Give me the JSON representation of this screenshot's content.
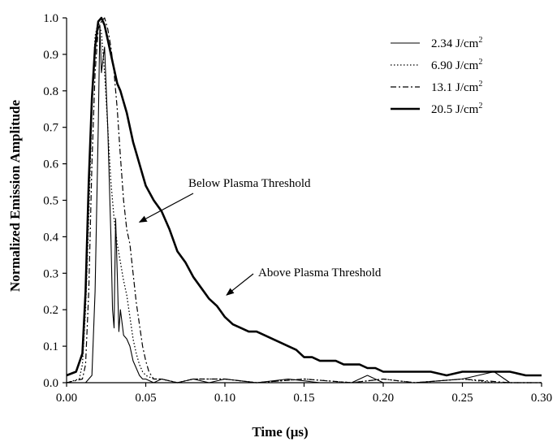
{
  "chart_data": {
    "type": "line",
    "xlabel": "Time (μs)",
    "ylabel": "Normalized Emission Amplitude",
    "xlim": [
      0.0,
      0.3
    ],
    "ylim": [
      0.0,
      1.0
    ],
    "x_ticks": [
      0.0,
      0.05,
      0.1,
      0.15,
      0.2,
      0.25,
      0.3
    ],
    "y_ticks": [
      0.0,
      0.1,
      0.2,
      0.3,
      0.4,
      0.5,
      0.6,
      0.7,
      0.8,
      0.9,
      1.0
    ],
    "x_tick_labels": [
      "0.00",
      "0.05",
      "0.10",
      "0.15",
      "0.20",
      "0.25",
      "0.30"
    ],
    "y_tick_labels": [
      "0.0",
      "0.1",
      "0.2",
      "0.3",
      "0.4",
      "0.5",
      "0.6",
      "0.7",
      "0.8",
      "0.9",
      "1.0"
    ],
    "grid": false,
    "legend_position": "top-right",
    "series": [
      {
        "name": "2.34 J/cm²",
        "line_style": "solid-thin",
        "x": [
          0.0,
          0.012,
          0.016,
          0.018,
          0.02,
          0.021,
          0.022,
          0.024,
          0.026,
          0.028,
          0.029,
          0.03,
          0.031,
          0.032,
          0.033,
          0.034,
          0.036,
          0.038,
          0.04,
          0.042,
          0.044,
          0.046,
          0.048,
          0.05,
          0.055,
          0.06,
          0.07,
          0.08,
          0.09,
          0.1,
          0.12,
          0.14,
          0.16,
          0.18,
          0.19,
          0.2,
          0.22,
          0.25,
          0.27,
          0.28,
          0.3
        ],
        "y": [
          0.0,
          0.0,
          0.02,
          0.25,
          0.7,
          0.98,
          0.85,
          0.92,
          0.7,
          0.4,
          0.2,
          0.15,
          0.45,
          0.3,
          0.14,
          0.2,
          0.13,
          0.12,
          0.1,
          0.06,
          0.04,
          0.02,
          0.01,
          0.01,
          0.0,
          0.01,
          0.0,
          0.01,
          0.0,
          0.01,
          0.0,
          0.01,
          0.0,
          0.0,
          0.02,
          0.0,
          0.0,
          0.01,
          0.03,
          0.0,
          0.0
        ]
      },
      {
        "name": "6.90 J/cm²",
        "line_style": "dotted",
        "x": [
          0.0,
          0.008,
          0.01,
          0.012,
          0.014,
          0.016,
          0.018,
          0.02,
          0.022,
          0.024,
          0.026,
          0.028,
          0.03,
          0.032,
          0.034,
          0.036,
          0.038,
          0.04,
          0.042,
          0.044,
          0.046,
          0.048,
          0.05,
          0.055,
          0.06,
          0.07,
          0.08,
          0.1,
          0.12,
          0.15,
          0.18,
          0.2,
          0.22,
          0.25,
          0.27,
          0.3
        ],
        "y": [
          0.0,
          0.01,
          0.05,
          0.2,
          0.45,
          0.75,
          0.95,
          0.99,
          0.96,
          0.85,
          0.7,
          0.55,
          0.45,
          0.38,
          0.33,
          0.28,
          0.24,
          0.18,
          0.12,
          0.08,
          0.05,
          0.03,
          0.02,
          0.01,
          0.01,
          0.0,
          0.01,
          0.01,
          0.0,
          0.01,
          0.0,
          0.01,
          0.0,
          0.01,
          0.0,
          0.0
        ]
      },
      {
        "name": "13.1 J/cm²",
        "line_style": "dash-dot",
        "x": [
          0.0,
          0.01,
          0.012,
          0.014,
          0.016,
          0.018,
          0.02,
          0.022,
          0.024,
          0.026,
          0.028,
          0.03,
          0.032,
          0.034,
          0.036,
          0.038,
          0.04,
          0.042,
          0.044,
          0.046,
          0.048,
          0.05,
          0.052,
          0.055,
          0.06,
          0.07,
          0.08,
          0.1,
          0.12,
          0.15,
          0.18,
          0.2,
          0.22,
          0.25,
          0.28,
          0.3
        ],
        "y": [
          0.0,
          0.01,
          0.05,
          0.25,
          0.6,
          0.85,
          0.97,
          0.99,
          1.0,
          0.97,
          0.92,
          0.85,
          0.75,
          0.62,
          0.5,
          0.42,
          0.38,
          0.3,
          0.22,
          0.16,
          0.1,
          0.06,
          0.03,
          0.01,
          0.01,
          0.0,
          0.01,
          0.01,
          0.0,
          0.01,
          0.0,
          0.01,
          0.0,
          0.01,
          0.0,
          0.0
        ]
      },
      {
        "name": "20.5 J/cm²",
        "line_style": "solid-thick",
        "x": [
          0.0,
          0.006,
          0.01,
          0.012,
          0.014,
          0.016,
          0.018,
          0.02,
          0.022,
          0.024,
          0.026,
          0.028,
          0.03,
          0.032,
          0.034,
          0.036,
          0.038,
          0.04,
          0.042,
          0.044,
          0.046,
          0.048,
          0.05,
          0.055,
          0.06,
          0.065,
          0.07,
          0.075,
          0.08,
          0.085,
          0.09,
          0.095,
          0.1,
          0.105,
          0.11,
          0.115,
          0.12,
          0.125,
          0.13,
          0.135,
          0.14,
          0.145,
          0.15,
          0.155,
          0.16,
          0.165,
          0.17,
          0.175,
          0.18,
          0.185,
          0.19,
          0.195,
          0.2,
          0.21,
          0.22,
          0.23,
          0.24,
          0.25,
          0.26,
          0.27,
          0.28,
          0.29,
          0.3
        ],
        "y": [
          0.02,
          0.03,
          0.08,
          0.25,
          0.55,
          0.78,
          0.92,
          0.99,
          1.0,
          0.98,
          0.94,
          0.9,
          0.86,
          0.82,
          0.8,
          0.77,
          0.74,
          0.7,
          0.66,
          0.63,
          0.6,
          0.57,
          0.54,
          0.5,
          0.47,
          0.42,
          0.36,
          0.33,
          0.29,
          0.26,
          0.23,
          0.21,
          0.18,
          0.16,
          0.15,
          0.14,
          0.14,
          0.13,
          0.12,
          0.11,
          0.1,
          0.09,
          0.07,
          0.07,
          0.06,
          0.06,
          0.06,
          0.05,
          0.05,
          0.05,
          0.04,
          0.04,
          0.03,
          0.03,
          0.03,
          0.03,
          0.02,
          0.03,
          0.03,
          0.03,
          0.03,
          0.02,
          0.02
        ]
      }
    ],
    "annotations": [
      {
        "text": "Below Plasma Threshold",
        "arrow_to": [
          0.046,
          0.44
        ]
      },
      {
        "text": "Above Plasma Threshold",
        "arrow_to": [
          0.101,
          0.24
        ]
      }
    ]
  },
  "legend_units": {
    "base": "J/cm",
    "exponent": "2",
    "values": [
      "2.34",
      "6.90",
      "13.1",
      "20.5"
    ]
  }
}
